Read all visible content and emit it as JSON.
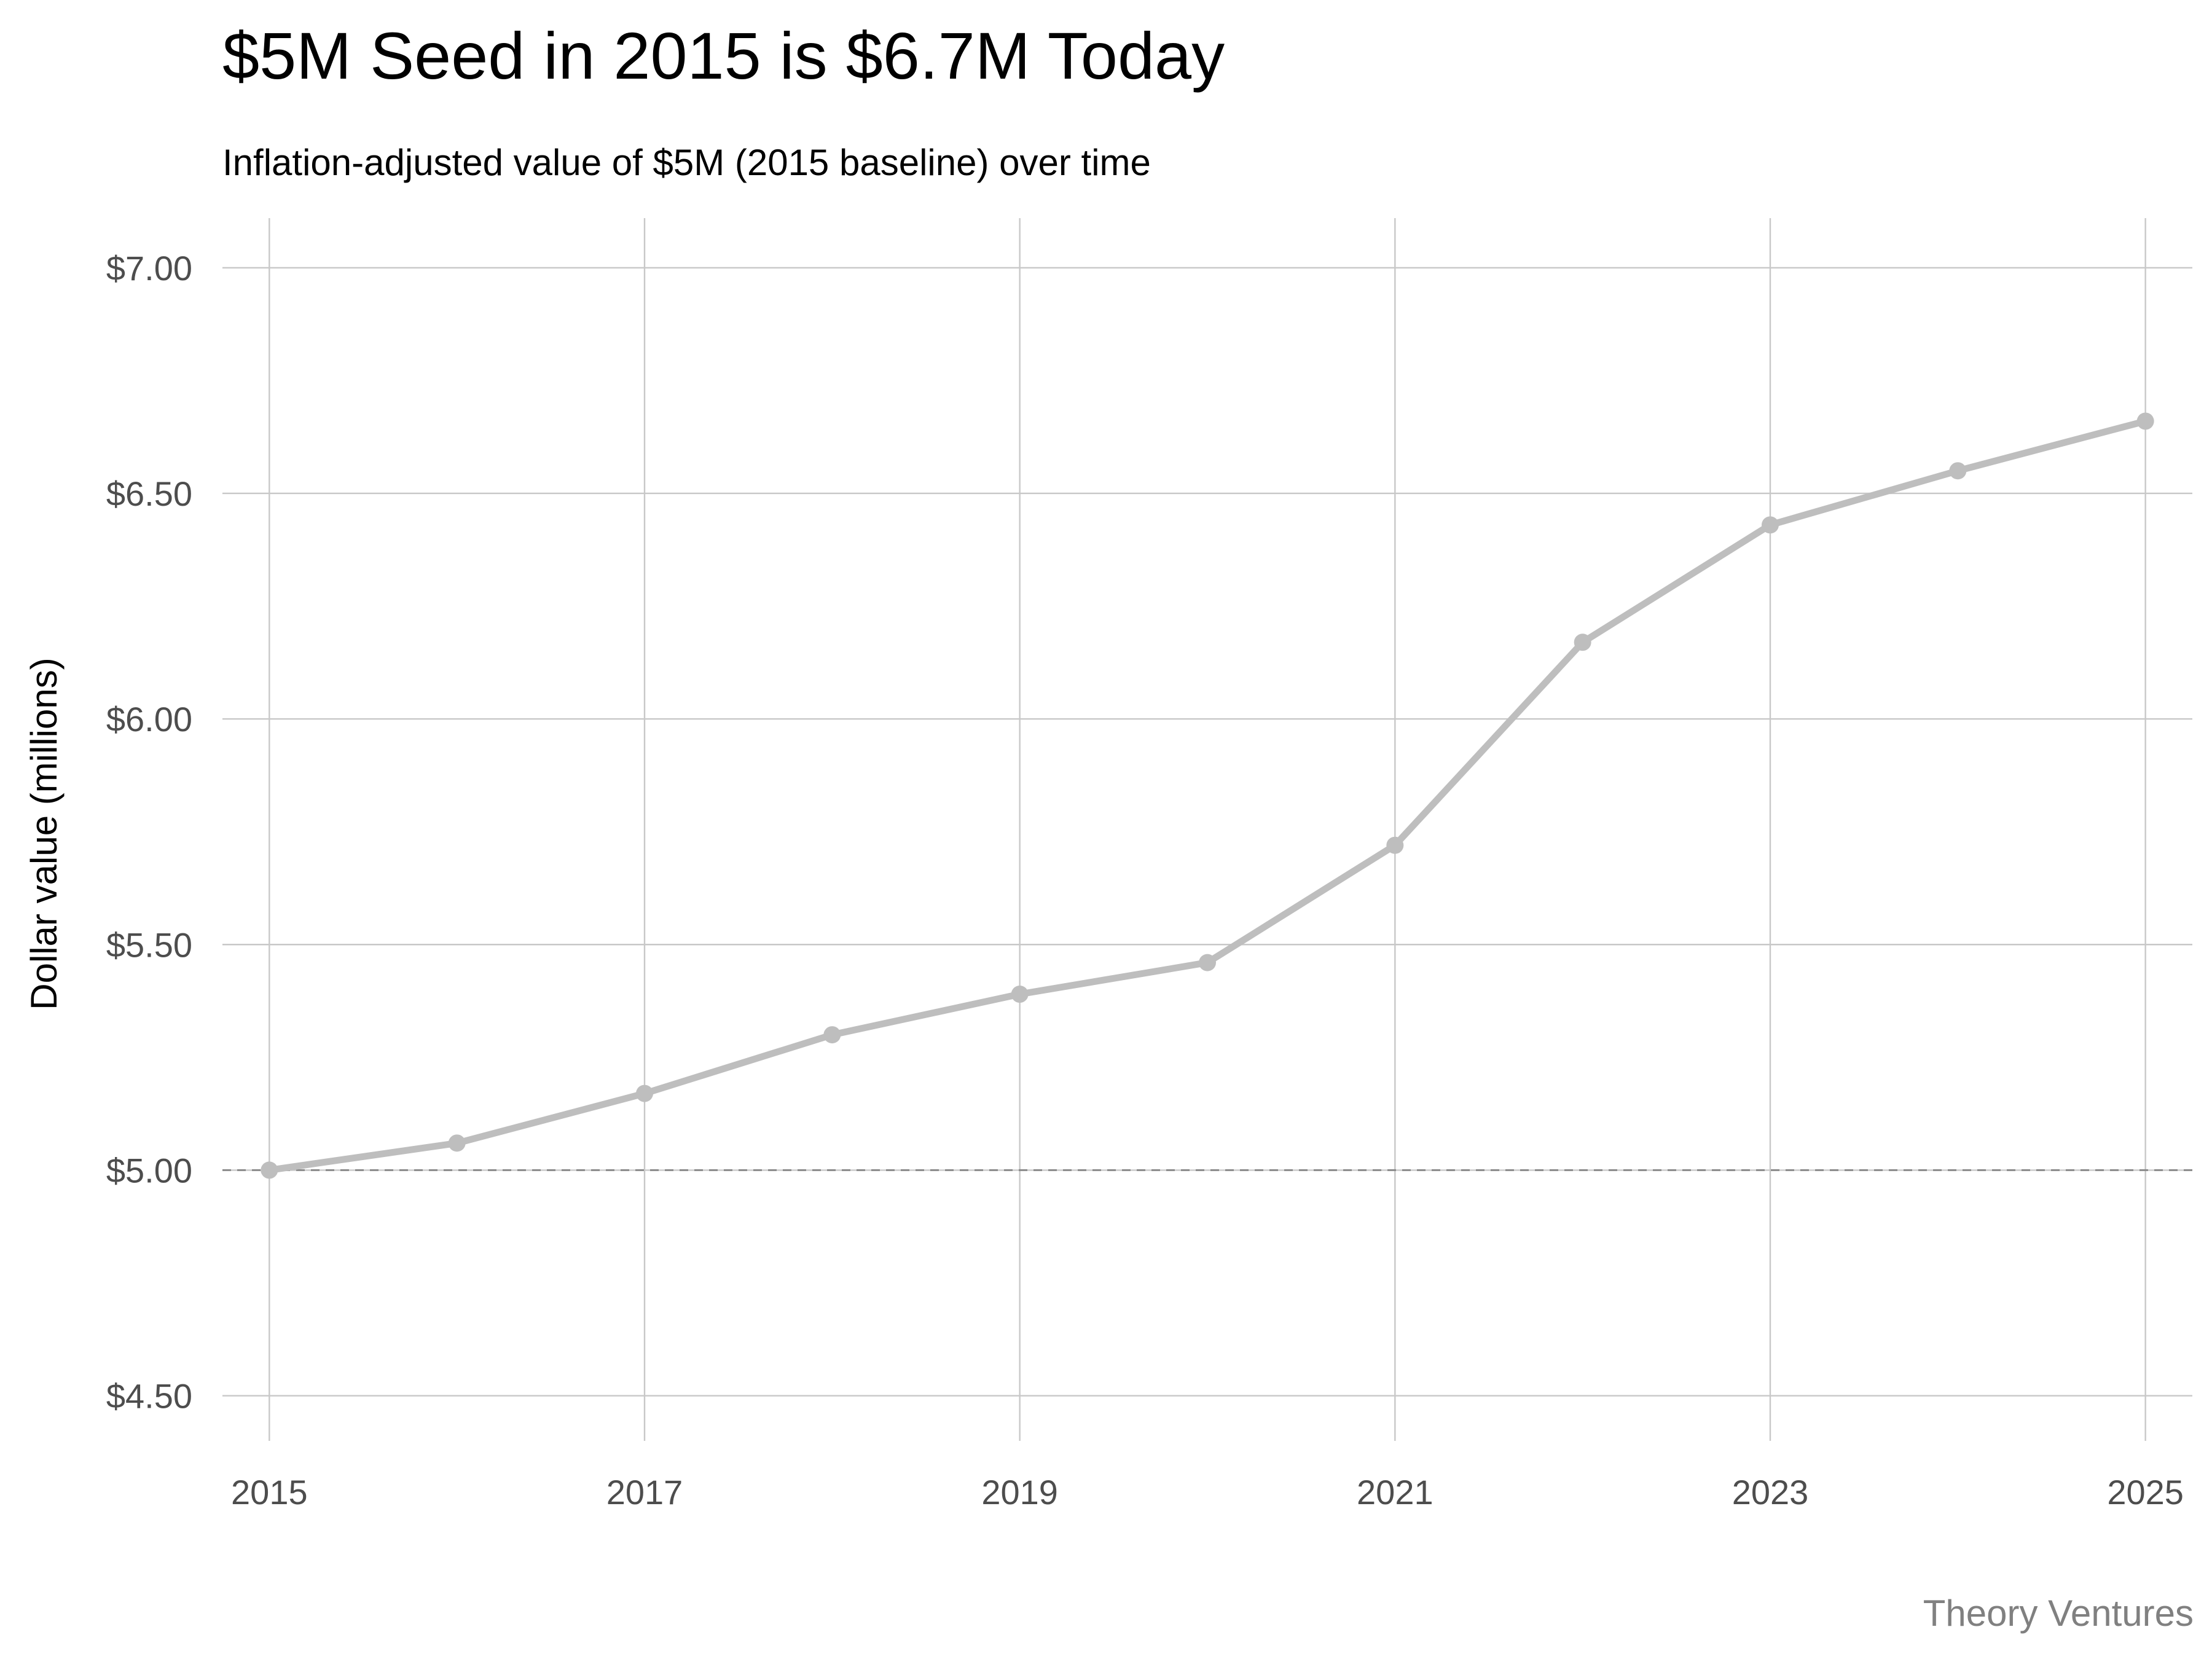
{
  "chart_data": {
    "type": "line",
    "title": "$5M Seed in 2015 is $6.7M Today",
    "subtitle": "Inflation-adjusted value of $5M (2015 baseline) over time",
    "xlabel": "",
    "ylabel": "Dollar value (millions)",
    "caption": "Theory Ventures",
    "x": [
      2015,
      2016,
      2017,
      2018,
      2019,
      2020,
      2021,
      2022,
      2023,
      2024,
      2025
    ],
    "series": [
      {
        "values": [
          5.0,
          5.06,
          5.17,
          5.3,
          5.39,
          5.46,
          5.72,
          6.17,
          6.43,
          6.55,
          6.66
        ],
        "color": "#bebebe"
      }
    ],
    "reference_line": {
      "y": 5.0,
      "style": "dashed",
      "color": "#8a8a8a"
    },
    "xlim": [
      2014.75,
      2025.25
    ],
    "ylim": [
      4.4,
      7.11
    ],
    "x_ticks": [
      2015,
      2017,
      2019,
      2021,
      2023,
      2025
    ],
    "x_tick_labels": [
      "2015",
      "2017",
      "2019",
      "2021",
      "2023",
      "2025"
    ],
    "y_ticks": [
      4.5,
      5.0,
      5.5,
      6.0,
      6.5,
      7.0
    ],
    "y_tick_labels": [
      "$4.50",
      "$5.00",
      "$5.50",
      "$6.00",
      "$6.50",
      "$7.00"
    ],
    "grid": true,
    "legend": "none"
  }
}
